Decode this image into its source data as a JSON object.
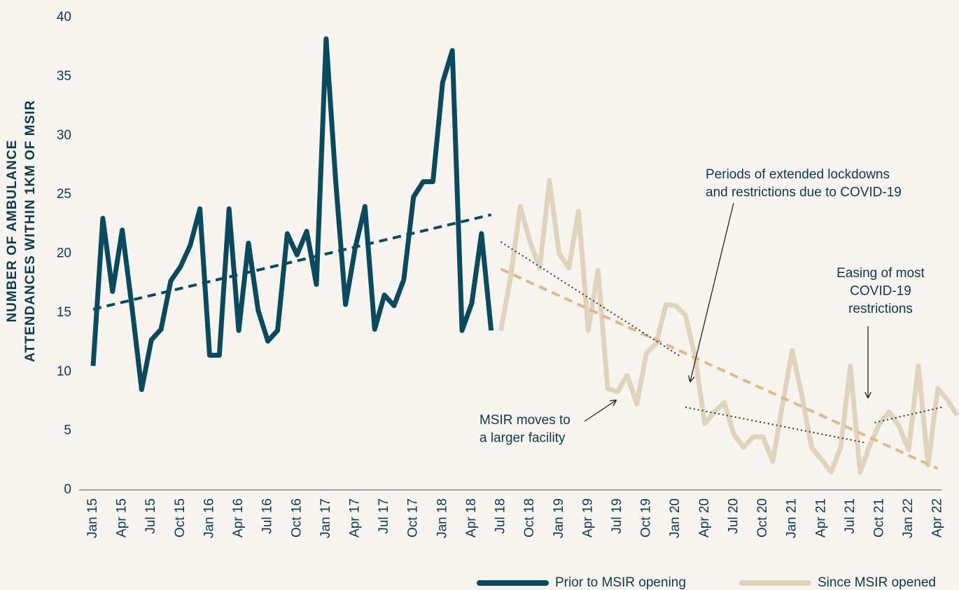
{
  "chart_data": {
    "type": "line",
    "y_label": [
      "NUMBER OF AMBULANCE",
      "ATTENDANCES WITHIN 1KM OF MSIR"
    ],
    "categories": [
      "Jan 15",
      null,
      null,
      "Apr 15",
      null,
      null,
      "Jul 15",
      null,
      null,
      "Oct 15",
      null,
      null,
      "Jan 16",
      null,
      null,
      "Apr 16",
      null,
      null,
      "Jul 16",
      null,
      null,
      "Oct 16",
      null,
      null,
      "Jan 17",
      null,
      null,
      "Apr 17",
      null,
      null,
      "Jul 17",
      null,
      null,
      "Oct 17",
      null,
      null,
      "Jan 18",
      null,
      null,
      "Apr 18",
      null,
      null,
      "Jul 18",
      null,
      null,
      "Oct 18",
      null,
      null,
      "Jan 19",
      null,
      null,
      "Apr 19",
      null,
      null,
      "Jul 19",
      null,
      null,
      "Oct 19",
      null,
      null,
      "Jan 20",
      null,
      null,
      "Apr 20",
      null,
      null,
      "Jul 20",
      null,
      null,
      "Oct 20",
      null,
      null,
      "Jan 21",
      null,
      null,
      "Apr 21",
      null,
      null,
      "Jul 21",
      null,
      null,
      "Oct 21",
      null,
      null,
      "Jan 22",
      null,
      null,
      "Apr 22",
      null,
      null
    ],
    "series": [
      {
        "name": "Prior to MSIR opening",
        "color": "#0b4a5c",
        "values": [
          10.5,
          23,
          16.8,
          22,
          15.5,
          8.5,
          12.7,
          13.6,
          17.7,
          18.9,
          20.7,
          23.8,
          11.4,
          11.4,
          23.8,
          13.5,
          20.9,
          15.2,
          12.6,
          13.5,
          21.7,
          19.9,
          21.9,
          17.4,
          38.2,
          26,
          15.7,
          20.5,
          24,
          13.6,
          16.5,
          15.6,
          17.8,
          24.8,
          26.1,
          26.1,
          34.5,
          37.2,
          13.5,
          15.8,
          21.7,
          13.5,
          null,
          null,
          null,
          null,
          null,
          null,
          null,
          null,
          null,
          null,
          null,
          null,
          null,
          null,
          null,
          null,
          null,
          null,
          null,
          null,
          null,
          null,
          null,
          null,
          null,
          null,
          null,
          null,
          null,
          null,
          null,
          null,
          null,
          null,
          null,
          null,
          null,
          null,
          null,
          null,
          null,
          null,
          null,
          null,
          null,
          null,
          null,
          null
        ]
      },
      {
        "name": "Since MSIR opened",
        "color": "#e0d3bd",
        "values": [
          null,
          null,
          null,
          null,
          null,
          null,
          null,
          null,
          null,
          null,
          null,
          null,
          null,
          null,
          null,
          null,
          null,
          null,
          null,
          null,
          null,
          null,
          null,
          null,
          null,
          null,
          null,
          null,
          null,
          null,
          null,
          null,
          null,
          null,
          null,
          null,
          null,
          null,
          null,
          null,
          null,
          null,
          13.5,
          18,
          24,
          21,
          18.8,
          26.2,
          20,
          18.8,
          23.6,
          13.5,
          18.6,
          8.6,
          8.3,
          9.7,
          7.3,
          11.6,
          12.4,
          15.7,
          15.6,
          14.8,
          11.3,
          5.6,
          6.6,
          7.4,
          4.7,
          3.6,
          4.5,
          4.5,
          2.4,
          7.2,
          11.8,
          8,
          3.6,
          2.6,
          1.5,
          3.6,
          10.5,
          1.5,
          3.8,
          5.6,
          6.6,
          5.4,
          3.4,
          10.5,
          2.1,
          8.6,
          7.6,
          6.3
        ]
      }
    ],
    "trendlines": [
      {
        "x": [
          0,
          41
        ],
        "y": [
          15.3,
          23.3
        ],
        "color": "#0b4a5c",
        "style": "dashed"
      },
      {
        "x": [
          42,
          87
        ],
        "y": [
          18.7,
          1.8
        ],
        "color": "#e0b98a",
        "style": "dashed"
      },
      {
        "x": [
          42,
          60.5
        ],
        "y": [
          21,
          11.3
        ],
        "color": "#333333",
        "style": "dotted"
      },
      {
        "x": [
          61,
          79.5
        ],
        "y": [
          7,
          4
        ],
        "color": "#333333",
        "style": "dotted"
      },
      {
        "x": [
          80.5,
          87.4
        ],
        "y": [
          5.7,
          7
        ],
        "color": "#333333",
        "style": "dotted"
      }
    ],
    "annotations": [
      {
        "text": [
          "Periods of extended lockdowns",
          "and restrictions due to COVID-19"
        ]
      },
      {
        "text": [
          "Easing of most",
          "COVID-19",
          "restrictions"
        ]
      },
      {
        "text": [
          "MSIR moves to",
          "a larger facility"
        ]
      }
    ],
    "ylim": [
      0,
      40
    ],
    "yticks": [
      0,
      5,
      10,
      15,
      20,
      25,
      30,
      35,
      40
    ],
    "legend": "bottom-right"
  }
}
